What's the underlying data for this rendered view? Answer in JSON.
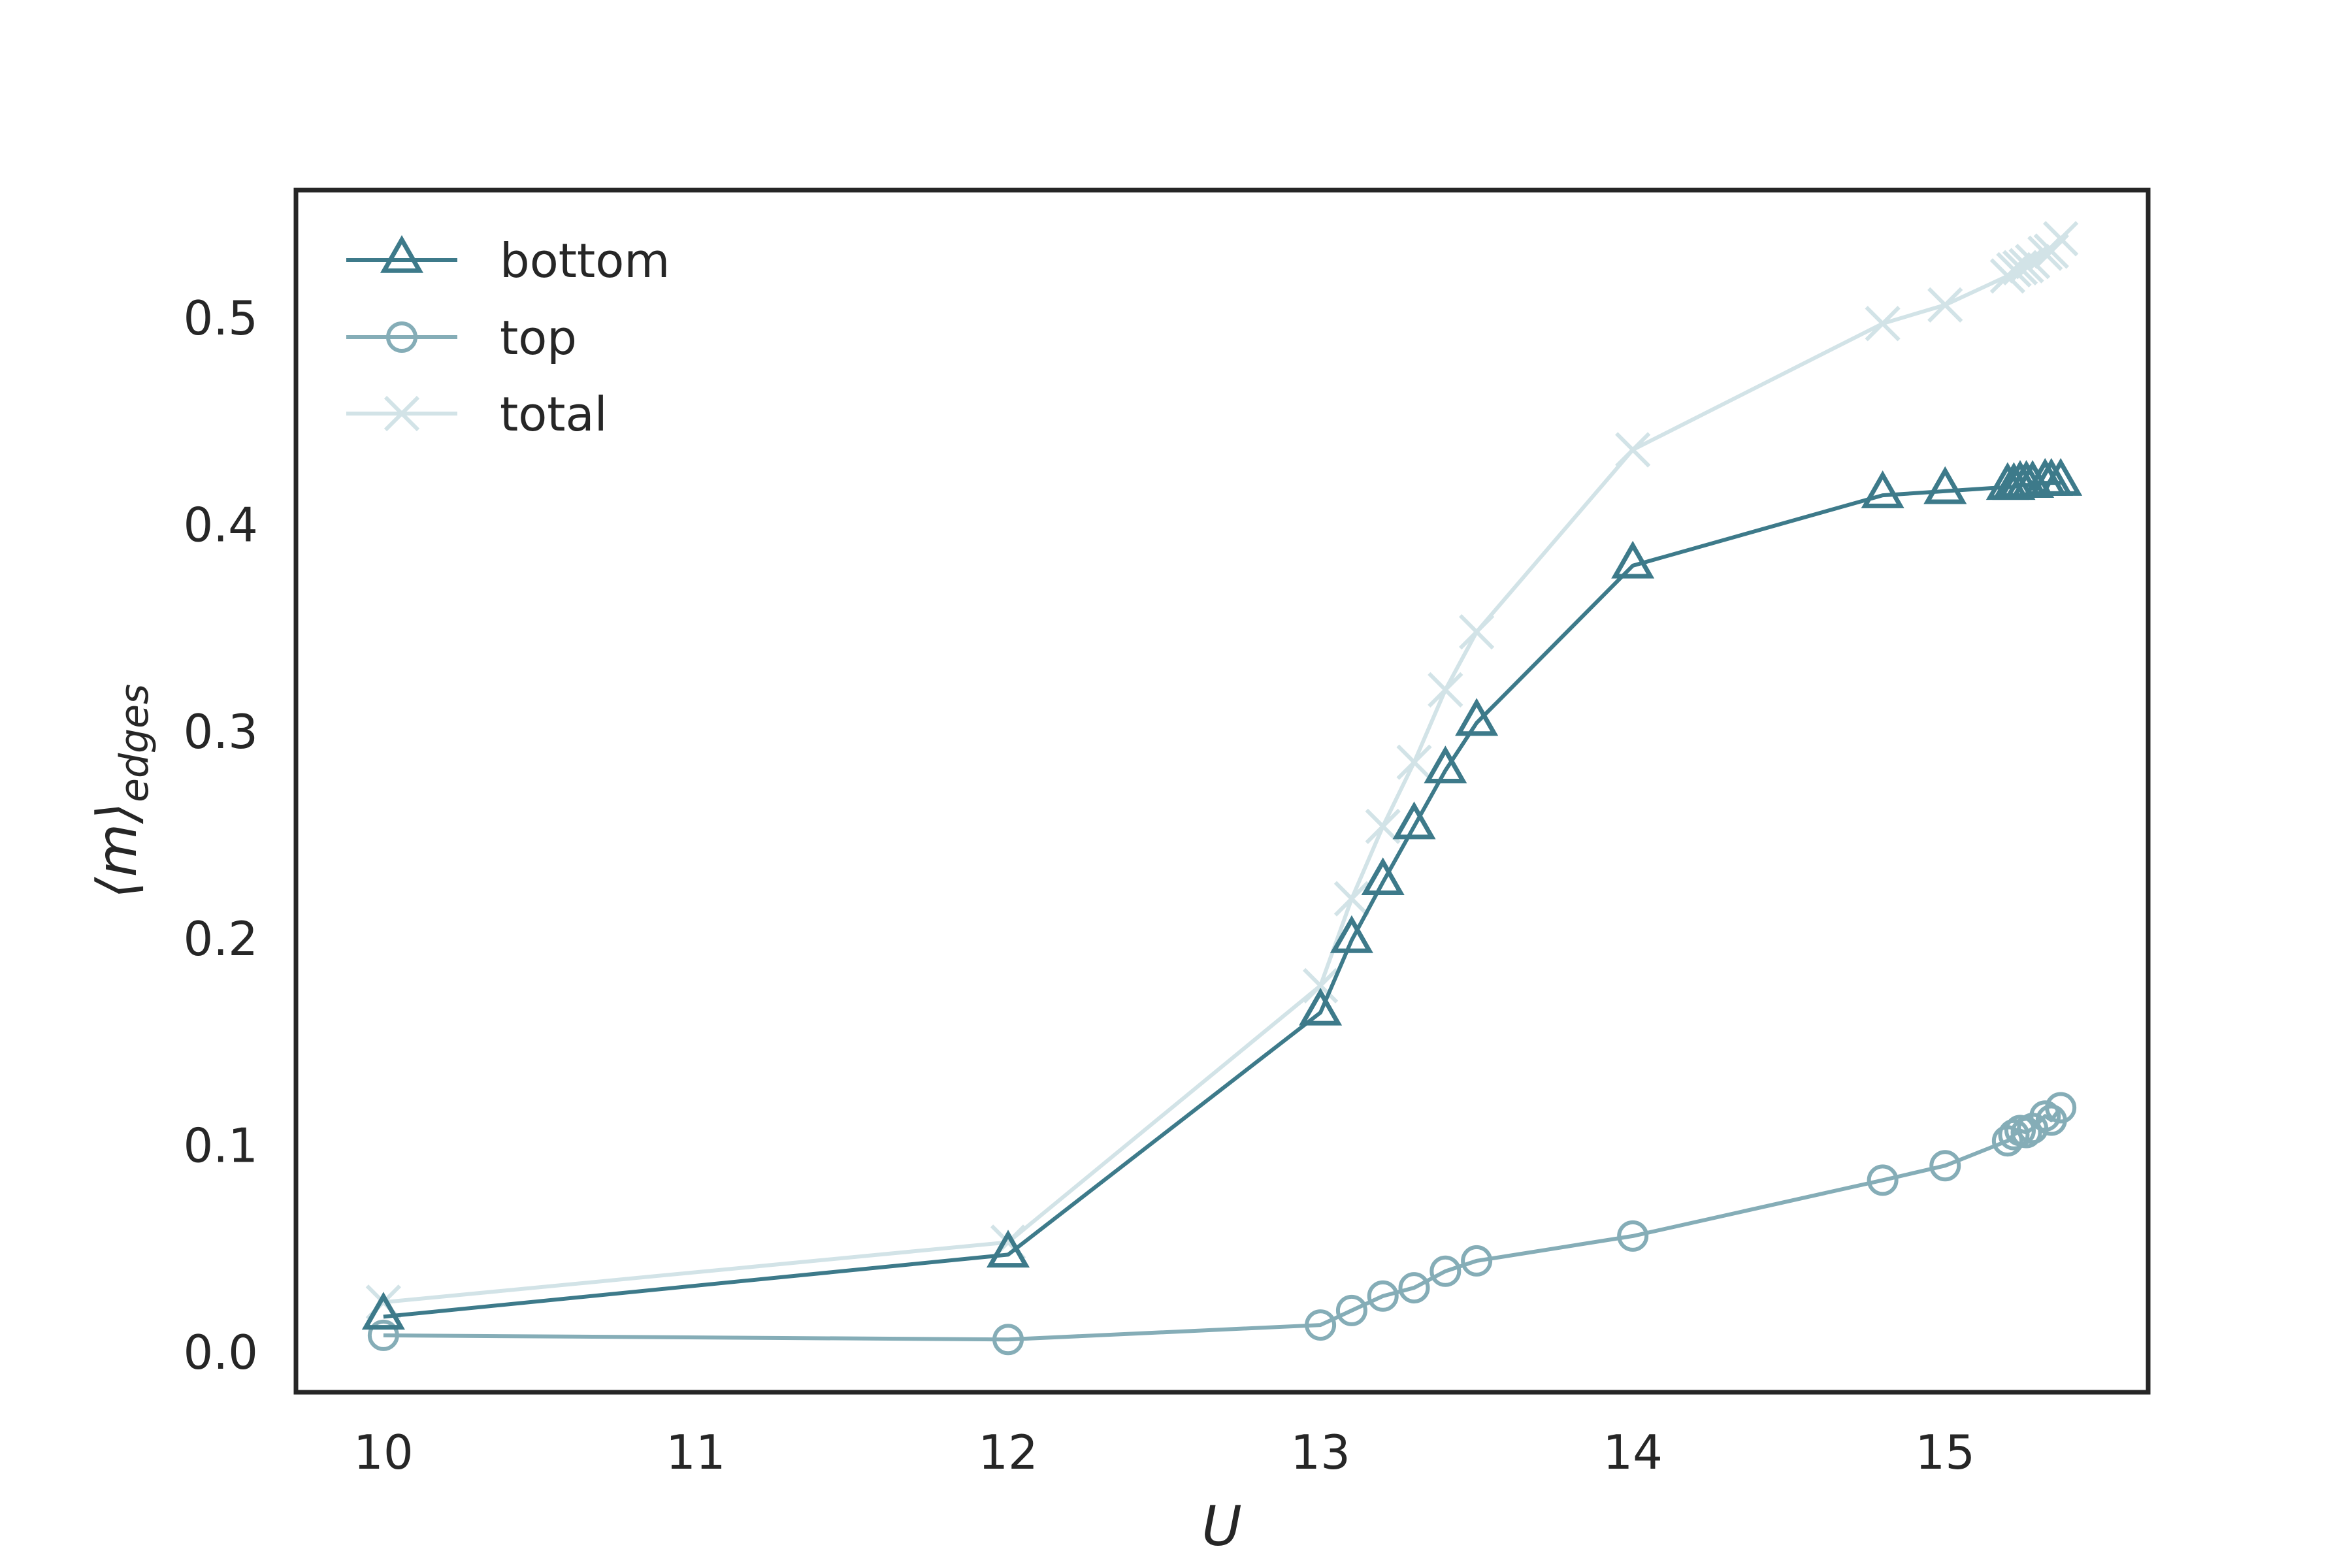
{
  "chart_data": {
    "type": "line",
    "title": "",
    "xlabel": "U",
    "ylabel_main": "⟨m⟩",
    "ylabel_sub": "edges",
    "xlim": [
      9.72,
      15.65
    ],
    "ylim": [
      -0.0195,
      0.5615
    ],
    "grid": false,
    "legend_position": "top-left",
    "xticks": [
      10,
      11,
      12,
      13,
      14,
      15
    ],
    "xtick_labels": [
      "10",
      "11",
      "12",
      "13",
      "14",
      "15"
    ],
    "yticks": [
      0.0,
      0.1,
      0.2,
      0.3,
      0.4,
      0.5
    ],
    "ytick_labels": [
      "0.0",
      "0.1",
      "0.2",
      "0.3",
      "0.4",
      "0.5"
    ],
    "x": [
      10.0,
      12.0,
      13.0,
      13.1,
      13.2,
      13.3,
      13.4,
      13.5,
      14.0,
      14.8,
      15.0,
      15.2,
      15.22,
      15.24,
      15.26,
      15.28,
      15.32,
      15.34,
      15.37
    ],
    "series": [
      {
        "name": "bottom",
        "marker": "triangle",
        "color": "#3d7a8a",
        "values": [
          0.017,
          0.047,
          0.164,
          0.199,
          0.227,
          0.254,
          0.281,
          0.304,
          0.38,
          0.414,
          0.416,
          0.418,
          0.418,
          0.419,
          0.419,
          0.419,
          0.42,
          0.42,
          0.42
        ]
      },
      {
        "name": "top",
        "marker": "circle",
        "color": "#85adb7",
        "values": [
          0.008,
          0.006,
          0.013,
          0.02,
          0.027,
          0.031,
          0.039,
          0.044,
          0.056,
          0.083,
          0.09,
          0.102,
          0.105,
          0.107,
          0.106,
          0.108,
          0.114,
          0.112,
          0.118
        ]
      },
      {
        "name": "total",
        "marker": "x",
        "color": "#d2e3e7",
        "values": [
          0.024,
          0.053,
          0.177,
          0.219,
          0.254,
          0.285,
          0.32,
          0.348,
          0.436,
          0.497,
          0.506,
          0.52,
          0.523,
          0.524,
          0.525,
          0.527,
          0.531,
          0.532,
          0.538
        ]
      }
    ]
  }
}
